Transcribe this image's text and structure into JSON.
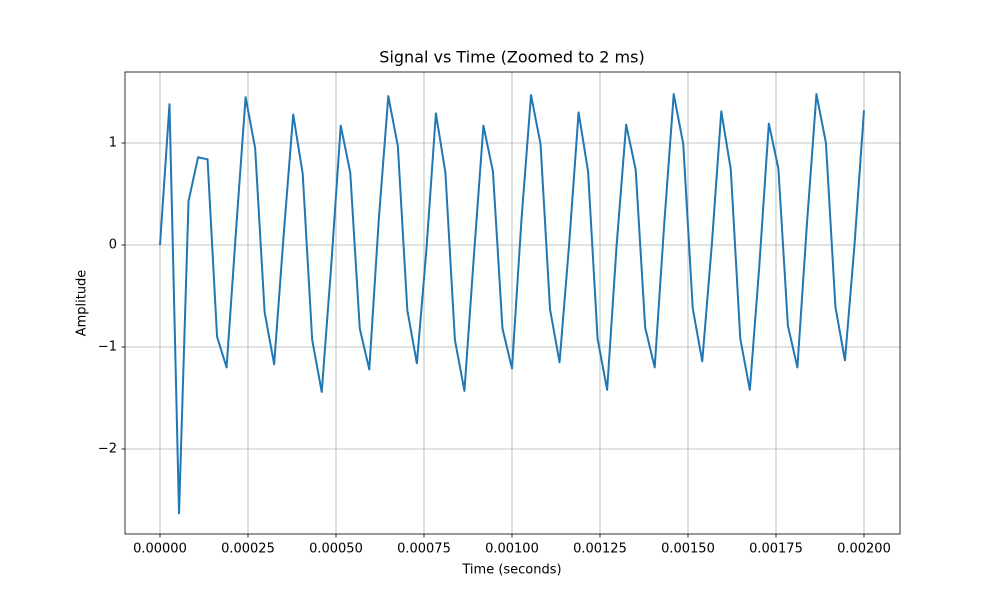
{
  "chart_data": {
    "type": "line",
    "title": "Signal vs Time (Zoomed to 2 ms)",
    "x_label": "Time (seconds)",
    "y_label": "Amplitude",
    "x": [
      0,
      2.7e-05,
      5.41e-05,
      8.11e-05,
      0.0001081,
      0.0001351,
      0.0001622,
      0.0001892,
      0.0002162,
      0.0002432,
      0.0002703,
      0.0002973,
      0.0003243,
      0.0003514,
      0.0003784,
      0.0004054,
      0.0004324,
      0.0004595,
      0.0004865,
      0.0005135,
      0.0005405,
      0.0005676,
      0.0005946,
      0.0006216,
      0.0006486,
      0.0006757,
      0.0007027,
      0.0007297,
      0.0007568,
      0.0007838,
      0.0008108,
      0.0008378,
      0.0008649,
      0.0008919,
      0.0009189,
      0.0009459,
      0.000973,
      0.001,
      0.001027,
      0.0010541,
      0.0010811,
      0.0011081,
      0.0011351,
      0.0011622,
      0.0011892,
      0.0012162,
      0.0012432,
      0.0012703,
      0.0012973,
      0.0013243,
      0.0013514,
      0.0013784,
      0.0014054,
      0.0014324,
      0.0014595,
      0.0014865,
      0.0015135,
      0.0015405,
      0.0015676,
      0.0015946,
      0.0016216,
      0.0016486,
      0.0016757,
      0.0017027,
      0.0017297,
      0.0017568,
      0.0017838,
      0.0018108,
      0.0018378,
      0.0018649,
      0.0018919,
      0.0019189,
      0.0019459,
      0.001973,
      0.002
    ],
    "series": [
      {
        "color": "#1f77b4",
        "values": [
          0,
          1.38,
          -2.63,
          0.43,
          0.86,
          0.84,
          -0.9,
          -1.2,
          0.15,
          1.45,
          0.95,
          -0.66,
          -1.17,
          0.1,
          1.28,
          0.7,
          -0.93,
          -1.44,
          -0.2,
          1.17,
          0.71,
          -0.82,
          -1.22,
          0.25,
          1.46,
          0.97,
          -0.64,
          -1.16,
          -0.05,
          1.29,
          0.71,
          -0.93,
          -1.43,
          -0.1,
          1.17,
          0.72,
          -0.82,
          -1.21,
          0.25,
          1.47,
          0.99,
          -0.63,
          -1.15,
          0.0,
          1.3,
          0.72,
          -0.92,
          -1.42,
          0.0,
          1.18,
          0.74,
          -0.81,
          -1.2,
          0.2,
          1.48,
          0.99,
          -0.62,
          -1.14,
          0.0,
          1.31,
          0.74,
          -0.92,
          -1.42,
          -0.2,
          1.19,
          0.75,
          -0.79,
          -1.2,
          0.2,
          1.48,
          1.0,
          -0.61,
          -1.13,
          0.0,
          1.32
        ]
      }
    ],
    "xlim": [
      -9.94e-05,
      0.0021023
    ],
    "ylim": [
      -2.833,
      1.696
    ],
    "xticks": [
      {
        "value": 0,
        "label": "0.00000"
      },
      {
        "value": 0.00025,
        "label": "0.00025"
      },
      {
        "value": 0.0005,
        "label": "0.00050"
      },
      {
        "value": 0.00075,
        "label": "0.00075"
      },
      {
        "value": 0.001,
        "label": "0.00100"
      },
      {
        "value": 0.00125,
        "label": "0.00125"
      },
      {
        "value": 0.0015,
        "label": "0.00150"
      },
      {
        "value": 0.00175,
        "label": "0.00175"
      },
      {
        "value": 0.002,
        "label": "0.00200"
      }
    ],
    "yticks": [
      {
        "value": -2,
        "label": "−2"
      },
      {
        "value": -1,
        "label": "−1"
      },
      0,
      1
    ],
    "grid": true
  }
}
